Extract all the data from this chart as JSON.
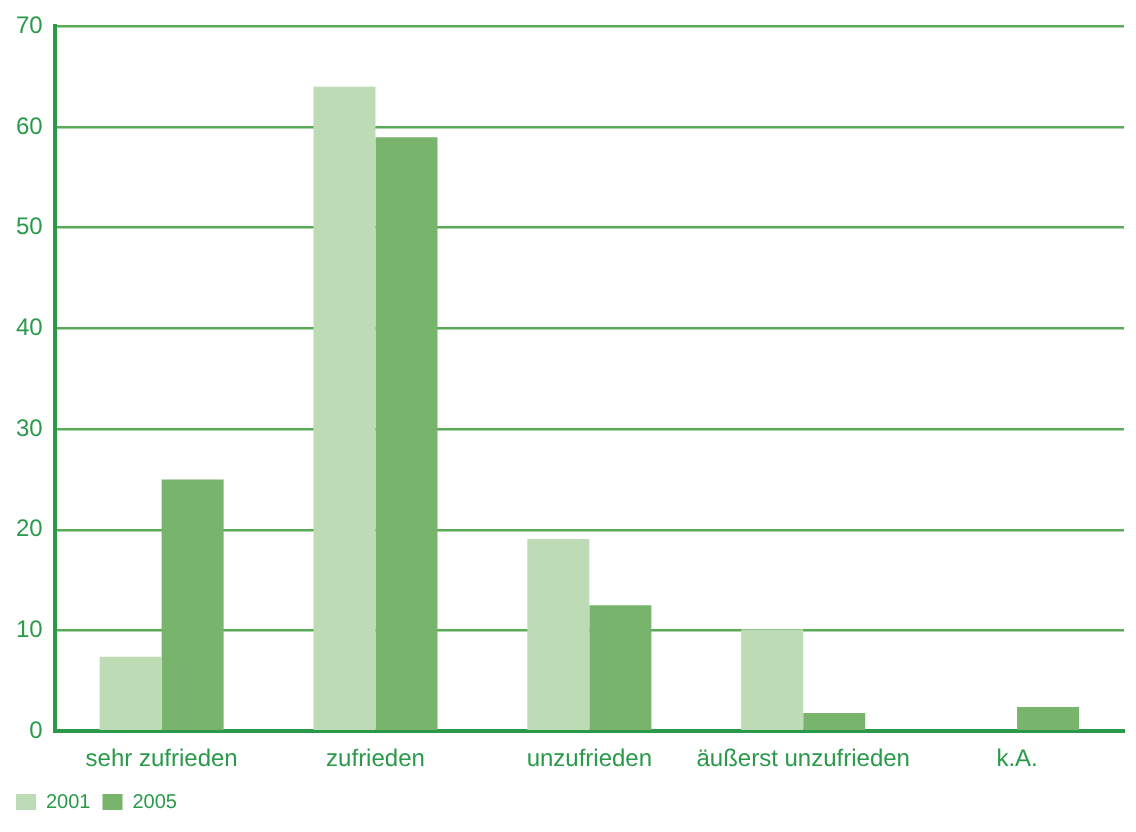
{
  "chart_data": {
    "type": "bar",
    "categories": [
      "sehr zufrieden",
      "zufrieden",
      "unzufrieden",
      "äußerst unzufrieden",
      "k.A."
    ],
    "series": [
      {
        "name": "2001",
        "color": "#bddbb4",
        "values": [
          7.4,
          64,
          19.1,
          10.1,
          null
        ]
      },
      {
        "name": "2005",
        "color": "#78b46c",
        "values": [
          25,
          59,
          12.5,
          1.8,
          2.4
        ]
      }
    ],
    "ylim": [
      0,
      70
    ],
    "yticks": [
      0,
      10,
      20,
      30,
      40,
      50,
      60,
      70
    ],
    "grid": "y",
    "legend": "bottom left"
  }
}
